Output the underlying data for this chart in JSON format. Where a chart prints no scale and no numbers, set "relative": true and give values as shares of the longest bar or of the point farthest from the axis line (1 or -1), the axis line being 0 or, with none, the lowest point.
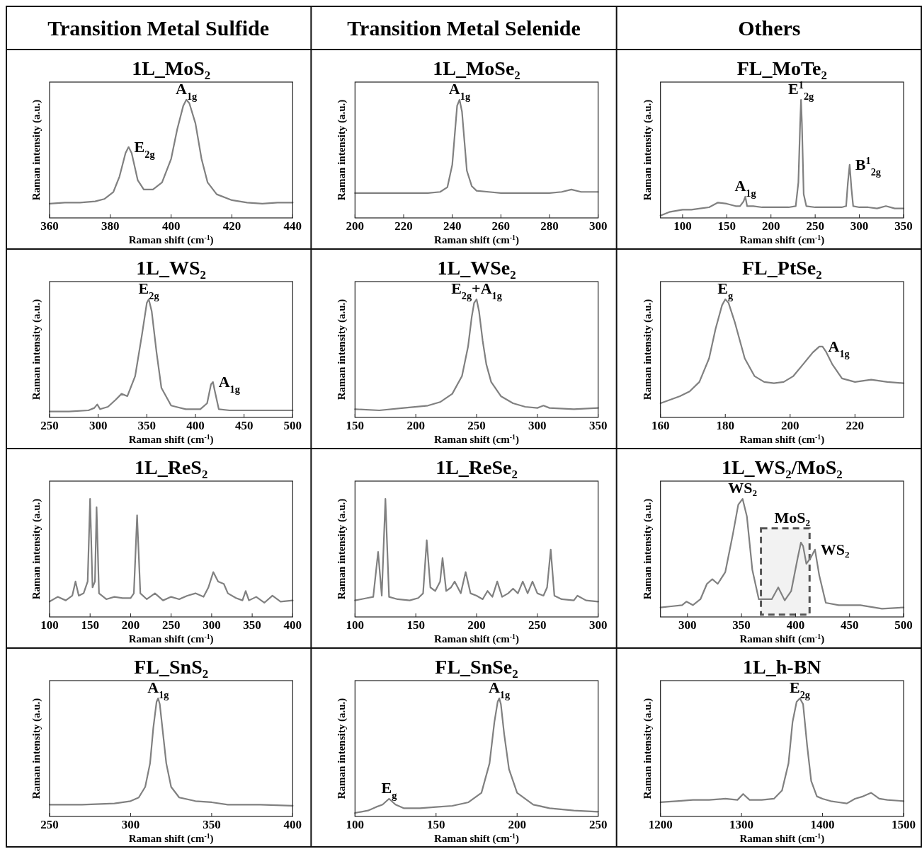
{
  "chart_data": [
    {
      "type": "line",
      "title": "1L_MoS₂",
      "xlabel": "Raman shift (cm$^{-1}$)",
      "ylabel": "Raman intensity (a.u.)",
      "relative": true,
      "tick_labels": "x",
      "color": "#808080",
      "xlim": [
        360,
        440
      ],
      "xticks": [
        360,
        380,
        400,
        420,
        440
      ],
      "x": [
        360,
        365,
        370,
        375,
        378,
        381,
        383,
        385,
        386,
        387,
        389,
        391,
        394,
        397,
        400,
        402,
        404,
        405,
        406,
        408,
        410,
        412,
        415,
        420,
        425,
        430,
        435,
        440
      ],
      "values": [
        0.12,
        0.13,
        0.13,
        0.14,
        0.16,
        0.22,
        0.35,
        0.55,
        0.6,
        0.55,
        0.32,
        0.24,
        0.24,
        0.3,
        0.5,
        0.75,
        0.95,
        1,
        0.97,
        0.8,
        0.5,
        0.3,
        0.2,
        0.15,
        0.13,
        0.12,
        0.13,
        0.13
      ],
      "annotations": [
        "Transition Metal Sulfide",
        {
          "text": "E$_{2g}$",
          "x": 386,
          "y": 0.6
        },
        {
          "text": "A$_{1g}$",
          "x": 405,
          "y": 1
        }
      ]
    },
    {
      "type": "line",
      "title": "1L_MoSe₂",
      "xlabel": "Raman shift (cm$^{-1}$)",
      "ylabel": "Raman intensity (a.u.)",
      "relative": true,
      "tick_labels": "x",
      "color": "#808080",
      "xlim": [
        200,
        300
      ],
      "xticks": [
        200,
        220,
        240,
        260,
        280,
        300
      ],
      "x": [
        200,
        210,
        220,
        230,
        235,
        238,
        240,
        241,
        242,
        243,
        244,
        245,
        246,
        248,
        250,
        255,
        260,
        270,
        280,
        285,
        289,
        293,
        300
      ],
      "values": [
        0.21,
        0.21,
        0.21,
        0.21,
        0.22,
        0.26,
        0.45,
        0.7,
        0.95,
        1,
        0.9,
        0.65,
        0.4,
        0.27,
        0.23,
        0.22,
        0.21,
        0.21,
        0.21,
        0.22,
        0.24,
        0.22,
        0.22
      ],
      "annotations": [
        "Transition Metal Selenide",
        {
          "text": "A$_{1g}$",
          "x": 243,
          "y": 1
        }
      ]
    },
    {
      "type": "line",
      "title": "FL_MoTe₂",
      "xlabel": "Raman shift (cm$^{-1}$)",
      "ylabel": "Raman intensity (a.u.)",
      "relative": true,
      "tick_labels": "x",
      "color": "#808080",
      "xlim": [
        75,
        350
      ],
      "xticks": [
        100,
        150,
        200,
        250,
        300,
        350
      ],
      "x": [
        75,
        85,
        100,
        110,
        120,
        130,
        140,
        150,
        160,
        165,
        169,
        171,
        173,
        180,
        190,
        200,
        210,
        220,
        228,
        231,
        233,
        234,
        235,
        237,
        240,
        250,
        260,
        270,
        280,
        285,
        287,
        289,
        291,
        293,
        300,
        310,
        320,
        330,
        340,
        350
      ],
      "values": [
        0.02,
        0.05,
        0.07,
        0.07,
        0.08,
        0.09,
        0.13,
        0.12,
        0.1,
        0.1,
        0.14,
        0.18,
        0.1,
        0.1,
        0.09,
        0.09,
        0.09,
        0.09,
        0.1,
        0.3,
        0.8,
        1,
        0.8,
        0.2,
        0.1,
        0.09,
        0.09,
        0.09,
        0.09,
        0.1,
        0.3,
        0.45,
        0.25,
        0.1,
        0.09,
        0.09,
        0.08,
        0.1,
        0.08,
        0.08
      ],
      "annotations": [
        "Others",
        {
          "text": "E$^{1}$$_{2g}$",
          "x": 234,
          "y": 1
        },
        {
          "text": "B$^{1}$$_{2g}$",
          "x": 289,
          "y": 0.45
        },
        {
          "text": "A$_{1g}$",
          "x": 171,
          "y": 0.18
        }
      ]
    },
    {
      "type": "line",
      "title": "1L_WS₂",
      "xlabel": "Raman shift (cm$^{-1}$)",
      "ylabel": "Raman intensity (a.u.)",
      "relative": true,
      "tick_labels": "x",
      "color": "#808080",
      "xlim": [
        250,
        500
      ],
      "xticks": [
        250,
        300,
        350,
        400,
        450,
        500
      ],
      "x": [
        250,
        270,
        290,
        296,
        299,
        302,
        310,
        318,
        324,
        330,
        338,
        345,
        350,
        352,
        355,
        360,
        365,
        375,
        390,
        405,
        412,
        416,
        418,
        420,
        424,
        435,
        450,
        470,
        500
      ],
      "values": [
        0.05,
        0.05,
        0.06,
        0.08,
        0.11,
        0.07,
        0.09,
        0.15,
        0.2,
        0.18,
        0.35,
        0.7,
        0.97,
        1,
        0.9,
        0.55,
        0.25,
        0.1,
        0.07,
        0.07,
        0.12,
        0.28,
        0.3,
        0.22,
        0.07,
        0.06,
        0.06,
        0.06,
        0.06
      ],
      "annotations": [
        {
          "text": "E$_{2g}$",
          "x": 352,
          "y": 1
        },
        {
          "text": "A$_{1g}$",
          "x": 418,
          "y": 0.3
        }
      ]
    },
    {
      "type": "line",
      "title": "1L_WSe₂",
      "xlabel": "Raman shift (cm$^{-1}$)",
      "ylabel": "Raman intensity (a.u.)",
      "relative": true,
      "tick_labels": "x",
      "color": "#808080",
      "xlim": [
        150,
        350
      ],
      "xticks": [
        150,
        200,
        250,
        300,
        350
      ],
      "x": [
        150,
        170,
        190,
        210,
        220,
        230,
        238,
        243,
        246,
        248,
        250,
        252,
        255,
        258,
        262,
        270,
        280,
        290,
        300,
        305,
        310,
        330,
        350
      ],
      "values": [
        0.07,
        0.06,
        0.08,
        0.1,
        0.13,
        0.2,
        0.35,
        0.6,
        0.85,
        0.97,
        1,
        0.9,
        0.65,
        0.45,
        0.3,
        0.18,
        0.12,
        0.09,
        0.08,
        0.1,
        0.08,
        0.07,
        0.08
      ],
      "annotations": [
        {
          "text": "E$_{2g}$+A$_{1g}$",
          "x": 250,
          "y": 1
        }
      ]
    },
    {
      "type": "line",
      "title": "FL_PtSe₂",
      "xlabel": "Raman shift (cm$^{-1}$)",
      "ylabel": "Raman intensity (a.u.)",
      "relative": true,
      "tick_labels": "x",
      "color": "#808080",
      "xlim": [
        160,
        235
      ],
      "xticks": [
        160,
        180,
        200,
        220
      ],
      "x": [
        160,
        163,
        166,
        169,
        172,
        175,
        177,
        179,
        180,
        181,
        183,
        186,
        189,
        192,
        195,
        198,
        201,
        204,
        207,
        209,
        210,
        211,
        213,
        216,
        220,
        225,
        230,
        235
      ],
      "values": [
        0.12,
        0.15,
        0.18,
        0.22,
        0.3,
        0.5,
        0.75,
        0.95,
        1,
        0.97,
        0.8,
        0.5,
        0.35,
        0.3,
        0.29,
        0.3,
        0.35,
        0.45,
        0.55,
        0.6,
        0.6,
        0.56,
        0.45,
        0.33,
        0.3,
        0.32,
        0.3,
        0.29
      ],
      "annotations": [
        {
          "text": "E$_{g}$",
          "x": 180,
          "y": 1
        },
        {
          "text": "A$_{1g}$",
          "x": 210,
          "y": 0.6
        }
      ]
    },
    {
      "type": "line",
      "title": "1L_ReS₂",
      "xlabel": "Raman shift (cm$^{-1}$)",
      "ylabel": "Raman intensity (a.u.)",
      "relative": true,
      "tick_labels": "x",
      "color": "#808080",
      "xlim": [
        100,
        400
      ],
      "xticks": [
        100,
        150,
        200,
        250,
        300,
        350,
        400
      ],
      "x": [
        100,
        110,
        120,
        128,
        132,
        136,
        142,
        147,
        150,
        153,
        156,
        158,
        161,
        170,
        180,
        190,
        200,
        204,
        208,
        212,
        220,
        230,
        240,
        250,
        260,
        270,
        280,
        290,
        296,
        302,
        308,
        315,
        320,
        330,
        338,
        342,
        346,
        355,
        365,
        375,
        385,
        400
      ],
      "values": [
        0.13,
        0.17,
        0.14,
        0.18,
        0.3,
        0.18,
        0.2,
        0.3,
        1,
        0.25,
        0.3,
        0.93,
        0.2,
        0.15,
        0.17,
        0.16,
        0.16,
        0.2,
        0.86,
        0.2,
        0.15,
        0.2,
        0.14,
        0.17,
        0.15,
        0.18,
        0.2,
        0.17,
        0.25,
        0.38,
        0.3,
        0.28,
        0.2,
        0.16,
        0.14,
        0.22,
        0.14,
        0.17,
        0.12,
        0.18,
        0.13,
        0.14
      ]
    },
    {
      "type": "line",
      "title": "1L_ReSe₂",
      "xlabel": "Raman shift (cm$^{-1}$)",
      "ylabel": "Raman intensity (a.u.)",
      "relative": true,
      "tick_labels": "x",
      "color": "#808080",
      "xlim": [
        100,
        300
      ],
      "xticks": [
        100,
        150,
        200,
        250,
        300
      ],
      "x": [
        100,
        105,
        110,
        115,
        119,
        122,
        125,
        128,
        135,
        145,
        152,
        156,
        159,
        162,
        166,
        170,
        172,
        175,
        179,
        182,
        187,
        191,
        195,
        200,
        205,
        209,
        213,
        217,
        221,
        226,
        230,
        234,
        238,
        242,
        246,
        250,
        255,
        258,
        261,
        264,
        270,
        280,
        283,
        290,
        300
      ],
      "values": [
        0.14,
        0.15,
        0.16,
        0.17,
        0.55,
        0.18,
        1,
        0.17,
        0.15,
        0.14,
        0.16,
        0.2,
        0.65,
        0.25,
        0.22,
        0.3,
        0.5,
        0.22,
        0.25,
        0.3,
        0.2,
        0.38,
        0.2,
        0.18,
        0.15,
        0.22,
        0.17,
        0.3,
        0.17,
        0.2,
        0.24,
        0.2,
        0.3,
        0.2,
        0.3,
        0.2,
        0.18,
        0.25,
        0.57,
        0.18,
        0.15,
        0.14,
        0.18,
        0.14,
        0.13
      ]
    },
    {
      "type": "line",
      "title": "1L_WS₂/MoS₂",
      "xlabel": "Raman shift (cm$^{-1}$)",
      "ylabel": "Raman intensity (a.u.)",
      "relative": true,
      "tick_labels": "x",
      "color": "#808080",
      "xlim": [
        275,
        500
      ],
      "xticks": [
        300,
        350,
        400,
        450,
        500
      ],
      "x": [
        275,
        285,
        295,
        299,
        305,
        312,
        318,
        323,
        328,
        335,
        342,
        347,
        351,
        355,
        360,
        366,
        372,
        378,
        384,
        390,
        396,
        402,
        405,
        407,
        410,
        414,
        418,
        422,
        428,
        440,
        460,
        480,
        500
      ],
      "values": [
        0.08,
        0.09,
        0.1,
        0.13,
        0.1,
        0.15,
        0.28,
        0.32,
        0.28,
        0.38,
        0.7,
        0.95,
        1,
        0.85,
        0.4,
        0.15,
        0.15,
        0.15,
        0.25,
        0.14,
        0.22,
        0.5,
        0.63,
        0.6,
        0.45,
        0.5,
        0.57,
        0.35,
        0.12,
        0.1,
        0.1,
        0.07,
        0.08
      ],
      "bands": [
        {
          "axis": "x",
          "from": 368,
          "to": 413,
          "label": "MoS₂",
          "color": "#555555"
        }
      ],
      "annotations": [
        {
          "text": "WS₂",
          "x": 351,
          "y": 1
        },
        {
          "text": "WS₂",
          "x": 418,
          "y": 0.57
        }
      ]
    },
    {
      "type": "line",
      "title": "FL_SnS₂",
      "xlabel": "Raman shift (cm$^{-1}$)",
      "ylabel": "Raman intensity (a.u.)",
      "relative": true,
      "tick_labels": "x",
      "color": "#808080",
      "xlim": [
        250,
        400
      ],
      "xticks": [
        250,
        300,
        350,
        400
      ],
      "x": [
        250,
        270,
        290,
        300,
        305,
        309,
        312,
        314,
        316,
        317,
        318,
        320,
        322,
        325,
        330,
        340,
        350,
        360,
        380,
        400
      ],
      "values": [
        0.1,
        0.1,
        0.11,
        0.13,
        0.16,
        0.25,
        0.45,
        0.75,
        0.97,
        1,
        0.95,
        0.7,
        0.45,
        0.25,
        0.16,
        0.13,
        0.12,
        0.1,
        0.1,
        0.09
      ],
      "annotations": [
        {
          "text": "A$_{1g}$",
          "x": 317,
          "y": 1
        }
      ]
    },
    {
      "type": "line",
      "title": "FL_SnSe₂",
      "xlabel": "Raman shift (cm$^{-1}$)",
      "ylabel": "Raman intensity (a.u.)",
      "relative": true,
      "tick_labels": "x",
      "color": "#808080",
      "xlim": [
        100,
        250
      ],
      "xticks": [
        100,
        150,
        200,
        250
      ],
      "x": [
        100,
        108,
        113,
        117,
        121,
        125,
        130,
        140,
        150,
        160,
        170,
        178,
        183,
        186,
        188,
        189,
        190,
        192,
        195,
        200,
        210,
        220,
        235,
        250
      ],
      "values": [
        0.03,
        0.05,
        0.08,
        0.1,
        0.15,
        0.1,
        0.07,
        0.07,
        0.08,
        0.09,
        0.12,
        0.2,
        0.45,
        0.8,
        0.97,
        1,
        0.95,
        0.7,
        0.4,
        0.2,
        0.1,
        0.07,
        0.05,
        0.04
      ],
      "annotations": [
        {
          "text": "E$_{g}$",
          "x": 121,
          "y": 0.15
        },
        {
          "text": "A$_{1g}$",
          "x": 189,
          "y": 1
        }
      ]
    },
    {
      "type": "line",
      "title": "1L_h-BN",
      "xlabel": "Raman shift (cm$^{-1}$)",
      "ylabel": "Raman intensity (a.u.)",
      "relative": true,
      "tick_labels": "x",
      "color": "#808080",
      "xlim": [
        1200,
        1500
      ],
      "xticks": [
        1200,
        1300,
        1400,
        1500
      ],
      "x": [
        1200,
        1220,
        1240,
        1260,
        1280,
        1295,
        1302,
        1310,
        1325,
        1340,
        1350,
        1358,
        1363,
        1368,
        1372,
        1376,
        1381,
        1386,
        1393,
        1400,
        1410,
        1420,
        1430,
        1440,
        1450,
        1460,
        1470,
        1480,
        1500
      ],
      "values": [
        0.12,
        0.13,
        0.14,
        0.14,
        0.15,
        0.14,
        0.19,
        0.14,
        0.14,
        0.15,
        0.22,
        0.45,
        0.8,
        0.97,
        1,
        0.95,
        0.6,
        0.3,
        0.17,
        0.15,
        0.13,
        0.12,
        0.11,
        0.15,
        0.17,
        0.2,
        0.15,
        0.14,
        0.13
      ],
      "annotations": [
        {
          "text": "E$_{2g}$",
          "x": 1372,
          "y": 1
        }
      ]
    }
  ]
}
